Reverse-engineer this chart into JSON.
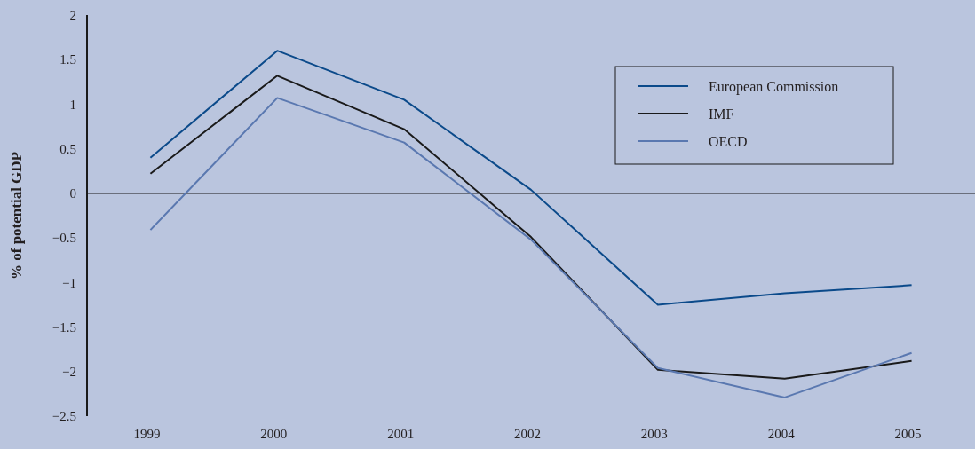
{
  "chart_data": {
    "type": "line",
    "ylabel": "% of potential GDP",
    "categories": [
      "1999",
      "2000",
      "2001",
      "2002",
      "2003",
      "2004",
      "2005"
    ],
    "series": [
      {
        "name": "European Commission",
        "color": "#0b4a8a",
        "values": [
          0.4,
          1.6,
          1.05,
          0.04,
          -1.25,
          -1.12,
          -1.03
        ]
      },
      {
        "name": "IMF",
        "color": "#1a1a1a",
        "values": [
          0.22,
          1.32,
          0.72,
          -0.49,
          -1.98,
          -2.08,
          -1.88
        ]
      },
      {
        "name": "OECD",
        "color": "#5a78b0",
        "values": [
          -0.41,
          1.07,
          0.57,
          -0.52,
          -1.96,
          -2.29,
          -1.79
        ]
      }
    ],
    "ylim": [
      -2.5,
      2
    ],
    "yticks": [
      {
        "value": -2.5,
        "label": "−2.5"
      },
      {
        "value": -2,
        "label": "−2"
      },
      {
        "value": -1.5,
        "label": "−1.5"
      },
      {
        "value": -1,
        "label": "−1"
      },
      {
        "value": -0.5,
        "label": "−0.5"
      },
      0,
      0.5,
      1,
      1.5,
      2
    ],
    "ref_lines": [
      {
        "axis": "y",
        "value": 0,
        "color": "#1a1a1a"
      }
    ],
    "legend": "top right",
    "grid": false,
    "marker": "none",
    "line_style": "solid"
  }
}
